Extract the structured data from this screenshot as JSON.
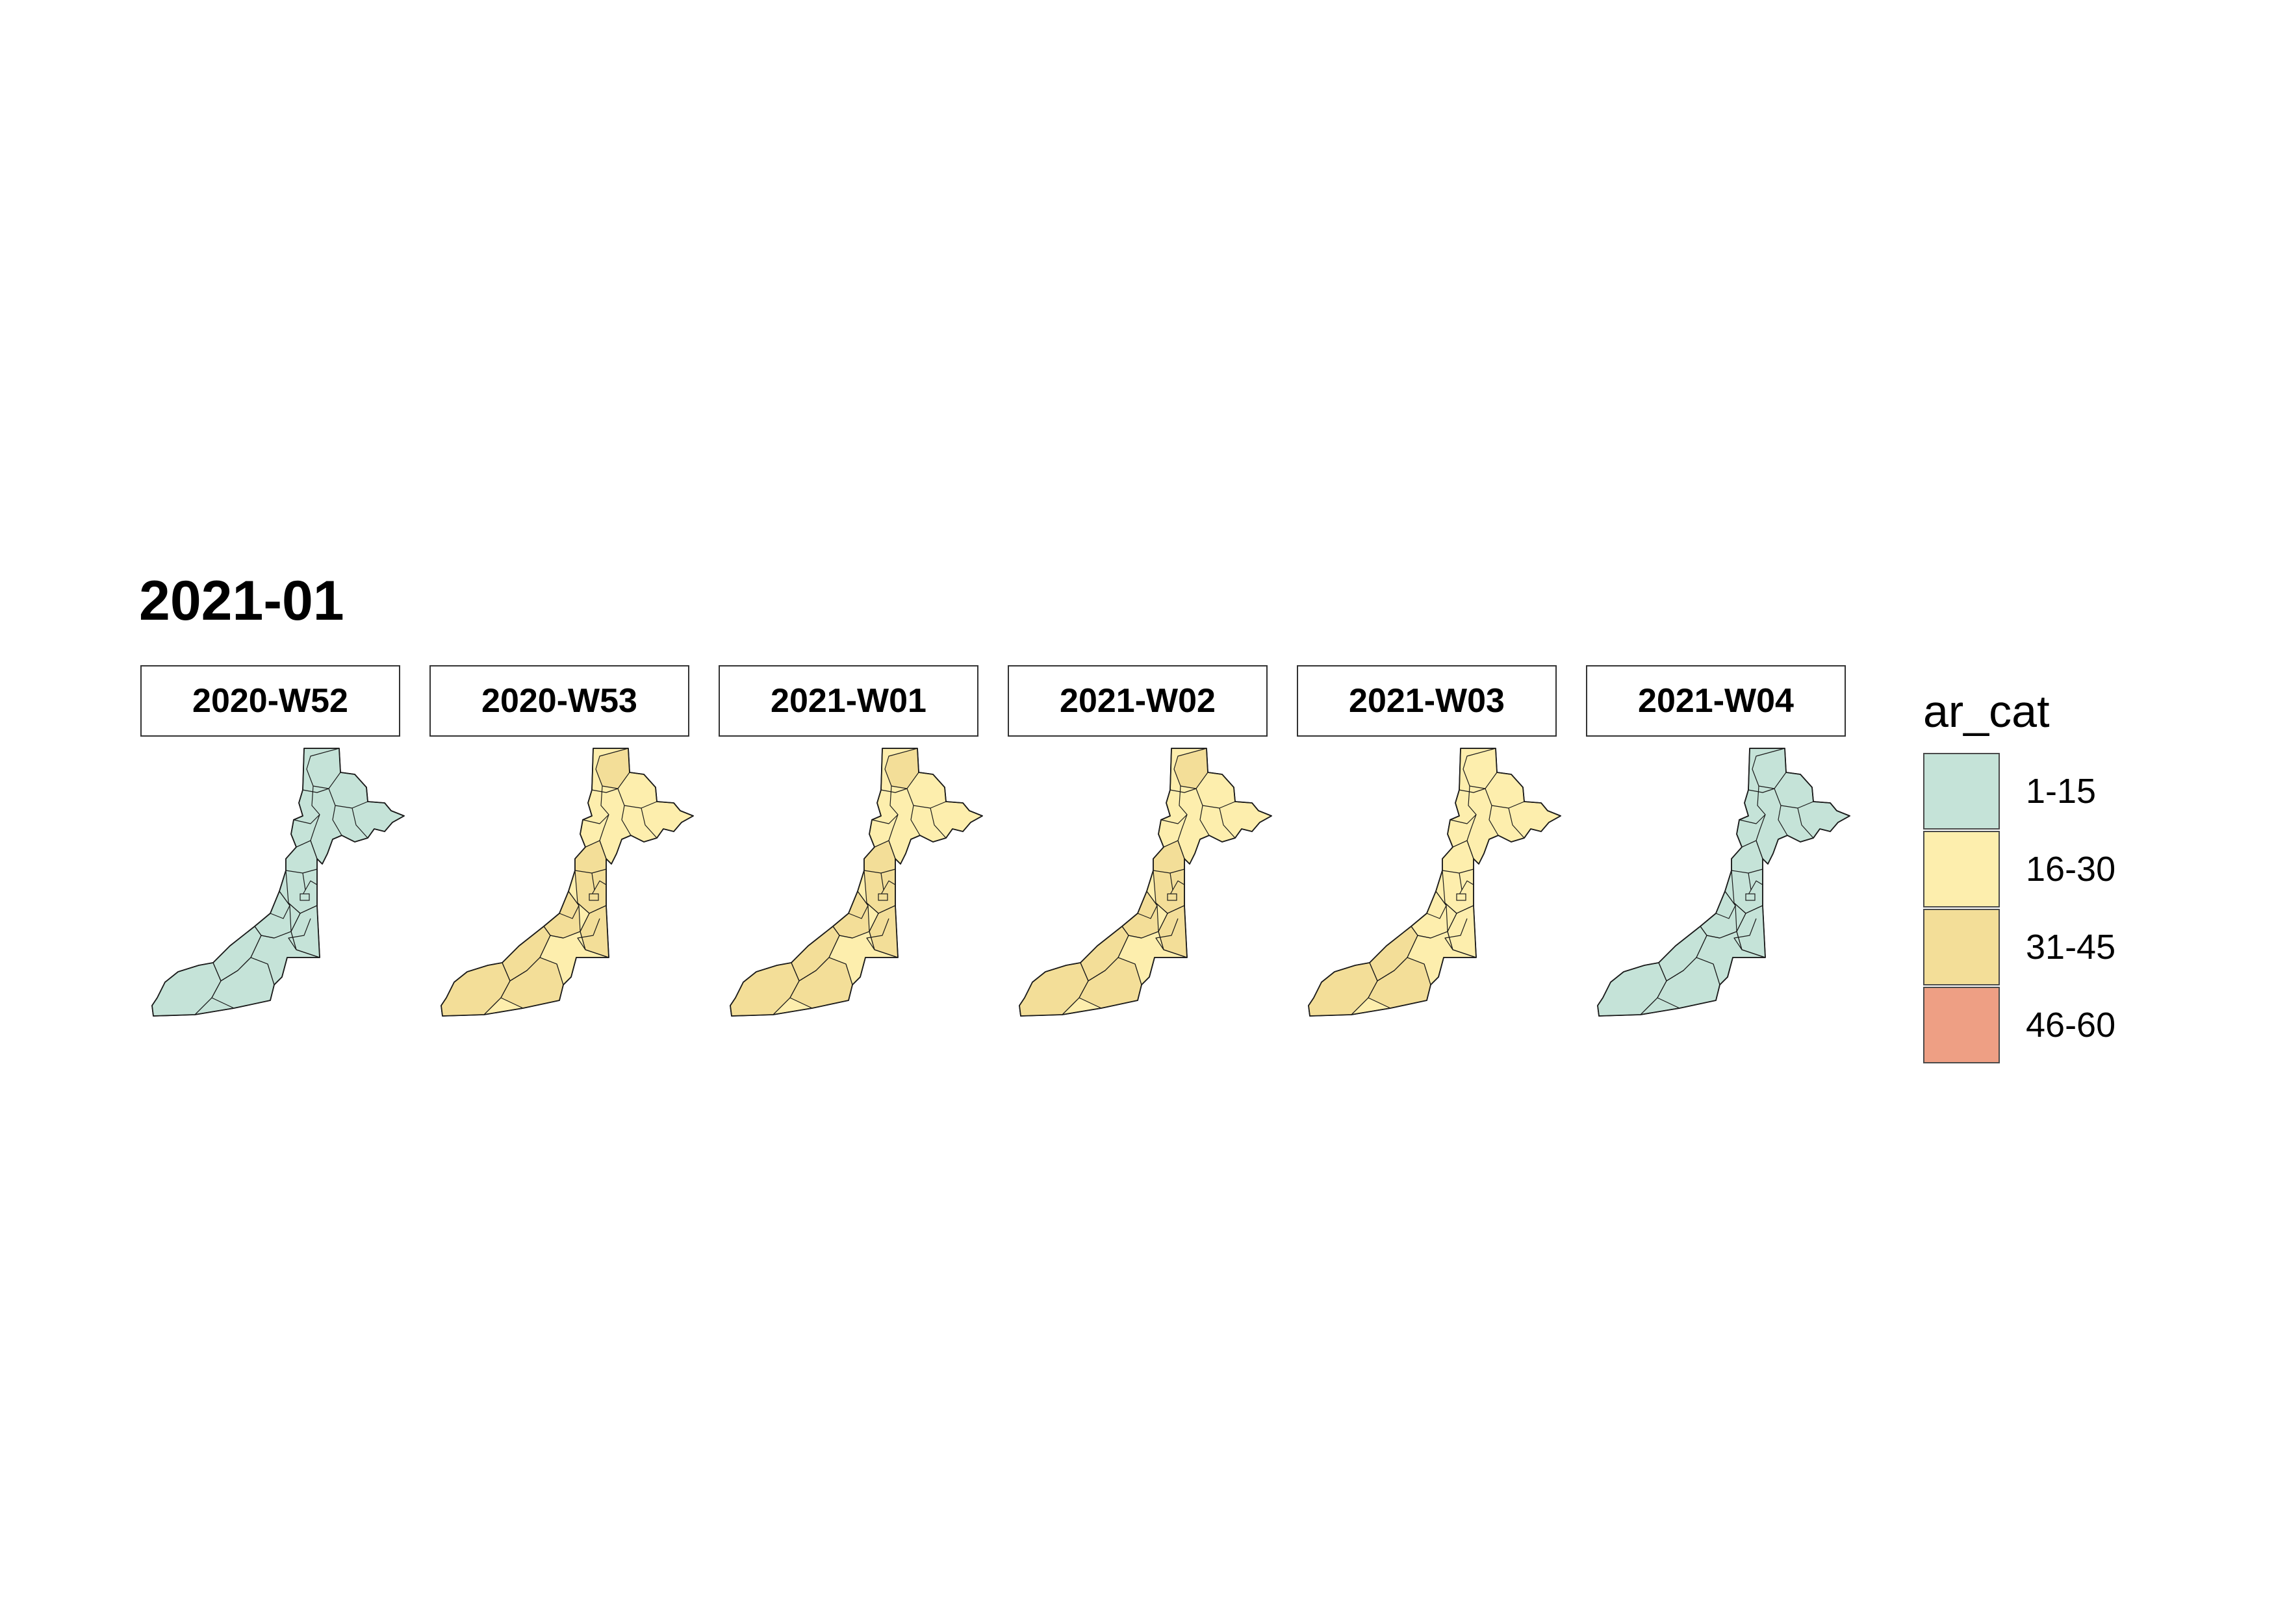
{
  "title": "2021-01",
  "legend": {
    "title": "ar_cat",
    "categories": [
      {
        "label": "1-15",
        "color": "#c5e3d8"
      },
      {
        "label": "16-30",
        "color": "#fdeead"
      },
      {
        "label": "31-45",
        "color": "#f3de98"
      },
      {
        "label": "46-60",
        "color": "#ee9f84"
      }
    ]
  },
  "panels": [
    {
      "week": "2020-W52",
      "main_color": "#c5e3d8",
      "inner_color": "#c5e3d8",
      "south_color": "#c5e3d8"
    },
    {
      "week": "2020-W53",
      "main_color": "#fdeead",
      "inner_color": "#f3de98",
      "south_color": "#f3de98"
    },
    {
      "week": "2021-W01",
      "main_color": "#fdeead",
      "inner_color": "#f3de98",
      "south_color": "#f3de98"
    },
    {
      "week": "2021-W02",
      "main_color": "#fdeead",
      "inner_color": "#f3de98",
      "south_color": "#f3de98"
    },
    {
      "week": "2021-W03",
      "main_color": "#fdeead",
      "inner_color": "#fdeead",
      "south_color": "#f3de98"
    },
    {
      "week": "2021-W04",
      "main_color": "#c5e3d8",
      "inner_color": "#c5e3d8",
      "south_color": "#c5e3d8"
    }
  ]
}
